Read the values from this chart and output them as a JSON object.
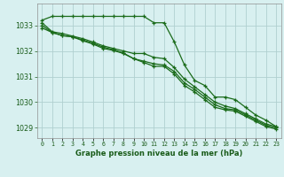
{
  "xlabel": "Graphe pression niveau de la mer (hPa)",
  "hours": [
    0,
    1,
    2,
    3,
    4,
    5,
    6,
    7,
    8,
    9,
    10,
    11,
    12,
    13,
    14,
    15,
    16,
    17,
    18,
    19,
    20,
    21,
    22,
    23
  ],
  "line1": [
    1033.2,
    1033.35,
    1033.35,
    1033.35,
    1033.35,
    1033.35,
    1033.35,
    1033.35,
    1033.35,
    1033.35,
    1033.35,
    1033.1,
    1033.1,
    1032.35,
    1031.45,
    1030.85,
    1030.65,
    1030.2,
    1030.2,
    1030.1,
    1029.8,
    1029.5,
    1029.3,
    1029.05
  ],
  "line2": [
    1033.1,
    1032.75,
    1032.68,
    1032.58,
    1032.48,
    1032.35,
    1032.2,
    1032.1,
    1032.0,
    1031.9,
    1031.9,
    1031.75,
    1031.7,
    1031.35,
    1030.9,
    1030.6,
    1030.3,
    1030.0,
    1029.85,
    1029.75,
    1029.55,
    1029.35,
    1029.15,
    1029.05
  ],
  "line3": [
    1033.0,
    1032.72,
    1032.6,
    1032.55,
    1032.43,
    1032.3,
    1032.15,
    1032.05,
    1031.92,
    1031.7,
    1031.6,
    1031.5,
    1031.45,
    1031.2,
    1030.75,
    1030.5,
    1030.2,
    1029.9,
    1029.75,
    1029.7,
    1029.5,
    1029.3,
    1029.1,
    1029.0
  ],
  "line4": [
    1032.9,
    1032.72,
    1032.6,
    1032.55,
    1032.4,
    1032.27,
    1032.1,
    1032.02,
    1031.9,
    1031.7,
    1031.55,
    1031.4,
    1031.4,
    1031.1,
    1030.65,
    1030.4,
    1030.1,
    1029.8,
    1029.7,
    1029.65,
    1029.45,
    1029.25,
    1029.05,
    1028.95
  ],
  "ylim": [
    1028.6,
    1033.85
  ],
  "yticks": [
    1029,
    1030,
    1031,
    1032,
    1033
  ],
  "bg_color": "#d8f0f0",
  "grid_color": "#b0d0d0",
  "line_color": "#1a6b1a",
  "xlabel_color": "#1a5c1a"
}
